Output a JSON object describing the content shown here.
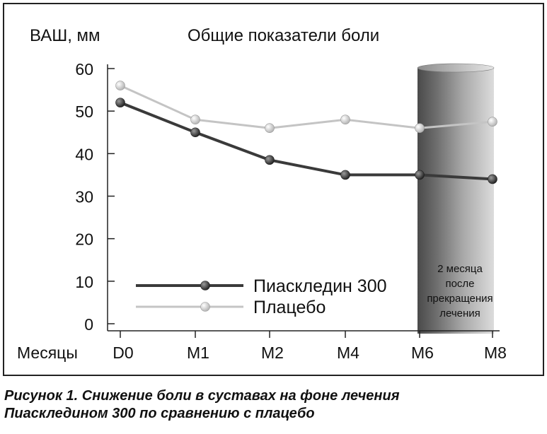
{
  "chart_data": {
    "type": "line",
    "title": "Общие показатели боли",
    "ylabel": "ВАШ, мм",
    "xlabel": "Месяцы",
    "categories": [
      "D0",
      "M1",
      "M2",
      "M4",
      "M6",
      "M8"
    ],
    "yticks": [
      "60",
      "50",
      "40",
      "30",
      "20",
      "10",
      "0"
    ],
    "ylim": [
      0,
      60
    ],
    "grid": false,
    "legend_position": "bottom-center",
    "series": [
      {
        "name": "Пиаскледин 300",
        "values": [
          52,
          45,
          38.5,
          35,
          35,
          34
        ],
        "color": "#3a3a3a"
      },
      {
        "name": "Плацебо",
        "values": [
          56,
          48,
          46,
          48,
          46,
          47.5
        ],
        "color": "#c4c4c4"
      }
    ],
    "annotation": {
      "text_lines": [
        "2 месяца",
        "после",
        "прекращения",
        "лечения"
      ],
      "start_category": "M6"
    }
  },
  "caption": {
    "line1": "Рисунок 1. Снижение боли в суставах на фоне лечения",
    "line2": "Пиаскледином 300 по сравнению с плацебо"
  }
}
